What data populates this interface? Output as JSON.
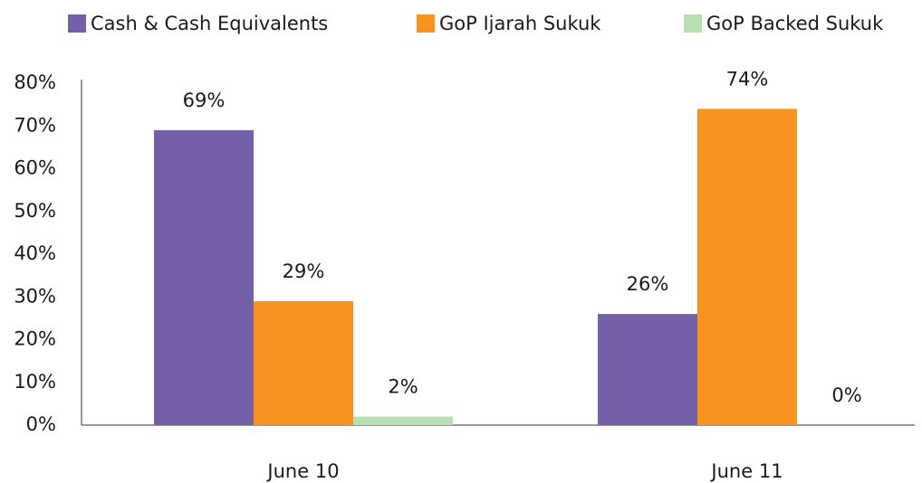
{
  "chart_data": {
    "type": "bar",
    "categories": [
      "June 10",
      "June 11"
    ],
    "series": [
      {
        "name": "Cash & Cash Equivalents",
        "color": "#7360a8",
        "values": [
          69,
          26
        ],
        "value_labels": [
          "69%",
          "26%"
        ]
      },
      {
        "name": "GoP Ijarah Sukuk",
        "color": "#f7931e",
        "values": [
          29,
          74
        ],
        "value_labels": [
          "29%",
          "74%"
        ]
      },
      {
        "name": "GoP Backed Sukuk",
        "color": "#b8dfb4",
        "values": [
          2,
          0
        ],
        "value_labels": [
          "2%",
          "0%"
        ]
      }
    ],
    "ylim": [
      0,
      80
    ],
    "yticks": [
      {
        "value": 0,
        "label": "0%"
      },
      {
        "value": 10,
        "label": "10%"
      },
      {
        "value": 20,
        "label": "20%"
      },
      {
        "value": 30,
        "label": "30%"
      },
      {
        "value": 40,
        "label": "40%"
      },
      {
        "value": 50,
        "label": "50%"
      },
      {
        "value": 60,
        "label": "60%"
      },
      {
        "value": 70,
        "label": "70%"
      },
      {
        "value": 80,
        "label": "80%"
      }
    ],
    "legend": "top",
    "grid": false
  }
}
